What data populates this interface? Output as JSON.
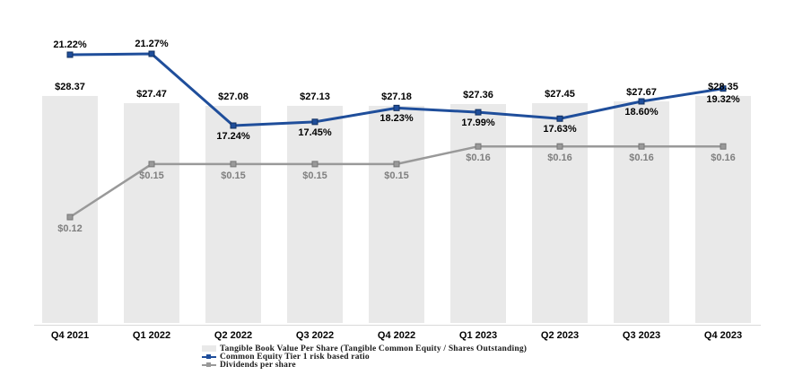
{
  "colors": {
    "bar": "#e9e9e9",
    "blue": "#1f4e9b",
    "blue_dark": "#12305f",
    "gray": "#999999",
    "gray_dark": "#777777",
    "axis": "#d9d9d9",
    "gray_label": "#7f7f7f"
  },
  "chart_data": {
    "type": "combo",
    "grid": false,
    "legend_position": "bottom",
    "categories": [
      "Q4 2021",
      "Q1 2022",
      "Q2 2022",
      "Q3 2022",
      "Q4 2022",
      "Q1 2023",
      "Q2 2023",
      "Q3 2023",
      "Q4 2023"
    ],
    "series": [
      {
        "name": "Tangible Book Value Per Share (Tangible Common Equity / Shares Outstanding)",
        "type": "bar",
        "values": [
          28.37,
          27.47,
          27.08,
          27.13,
          27.18,
          27.36,
          27.45,
          27.67,
          28.35
        ],
        "labels": [
          "$28.37",
          "$27.47",
          "$27.08",
          "$27.13",
          "$27.18",
          "$27.36",
          "$27.45",
          "$27.67",
          "$28.35"
        ]
      },
      {
        "name": "Common Equity Tier 1 risk based ratio",
        "type": "line",
        "values": [
          21.22,
          21.27,
          17.24,
          17.45,
          18.23,
          17.99,
          17.63,
          18.6,
          19.32
        ],
        "labels": [
          "21.22%",
          "21.27%",
          "17.24%",
          "17.45%",
          "18.23%",
          "17.99%",
          "17.63%",
          "18.60%",
          "19.32%"
        ]
      },
      {
        "name": "Dividends per share",
        "type": "line",
        "values": [
          0.12,
          0.15,
          0.15,
          0.15,
          0.15,
          0.16,
          0.16,
          0.16,
          0.16
        ],
        "labels": [
          "$0.12",
          "$0.15",
          "$0.15",
          "$0.15",
          "$0.15",
          "$0.16",
          "$0.16",
          "$0.16",
          "$0.16"
        ]
      }
    ]
  }
}
